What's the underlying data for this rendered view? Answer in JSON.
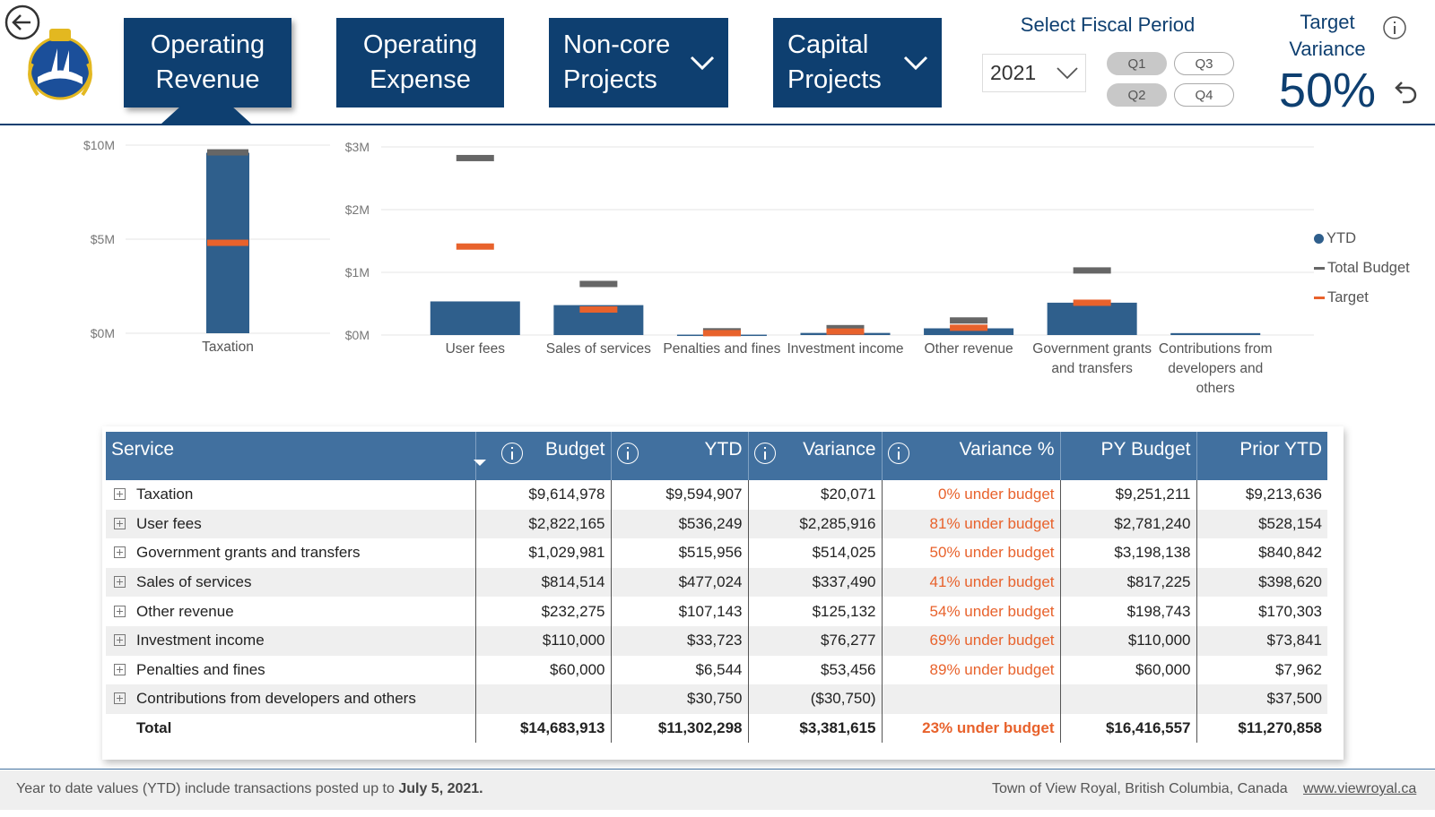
{
  "nav": {
    "buttons": [
      "Operating Revenue",
      "Operating Expense",
      "Non-core Projects",
      "Capital Projects"
    ],
    "fiscal_title": "Select Fiscal Period",
    "year": "2021",
    "quarters": [
      "Q1",
      "Q3",
      "Q2",
      "Q4"
    ],
    "target_title": "Target Variance",
    "target_value": "50%"
  },
  "chart_data": [
    {
      "type": "bar",
      "categories": [
        "Taxation"
      ],
      "series": [
        {
          "color": "#2f5f8c",
          "values": [
            9594907
          ]
        },
        {
          "color": "#666666",
          "values": [
            9614978
          ]
        },
        {
          "color": "#e8622c",
          "values": [
            4807489
          ]
        }
      ],
      "ylim": [
        0,
        10000000
      ],
      "yticks": [
        {
          "value": 0,
          "label": "$0M"
        },
        {
          "value": 5000000,
          "label": "$5M"
        },
        {
          "value": 10000000,
          "label": "$10M"
        }
      ],
      "grid": true
    },
    {
      "type": "bar",
      "categories": [
        "User fees",
        "Sales of services",
        "Penalties and fines",
        "Investment income",
        "Other revenue",
        "Government grants and transfers",
        "Contributions from developers and others"
      ],
      "series": [
        {
          "name": "YTD",
          "color": "#2f5f8c",
          "values": [
            536249,
            477024,
            6544,
            33723,
            107143,
            515956,
            30750
          ]
        },
        {
          "name": "Total Budget",
          "color": "#666666",
          "values": [
            2822165,
            814514,
            60000,
            110000,
            232275,
            1029981,
            null
          ]
        },
        {
          "name": "Target",
          "color": "#e8622c",
          "values": [
            1411083,
            407257,
            30000,
            55000,
            116138,
            514991,
            null
          ]
        }
      ],
      "ylim": [
        0,
        3000000
      ],
      "yticks": [
        {
          "value": 0,
          "label": "$0M"
        },
        {
          "value": 1000000,
          "label": "$1M"
        },
        {
          "value": 2000000,
          "label": "$2M"
        },
        {
          "value": 3000000,
          "label": "$3M"
        }
      ],
      "grid": true,
      "legend": "right"
    }
  ],
  "table": {
    "columns": [
      "Service",
      "Budget",
      "YTD",
      "Variance",
      "Variance %",
      "PY Budget",
      "Prior YTD"
    ],
    "rows": [
      [
        "Taxation",
        "$9,614,978",
        "$9,594,907",
        "$20,071",
        "0% under budget",
        "$9,251,211",
        "$9,213,636"
      ],
      [
        "User fees",
        "$2,822,165",
        "$536,249",
        "$2,285,916",
        "81% under budget",
        "$2,781,240",
        "$528,154"
      ],
      [
        "Government grants and transfers",
        "$1,029,981",
        "$515,956",
        "$514,025",
        "50% under budget",
        "$3,198,138",
        "$840,842"
      ],
      [
        "Sales of services",
        "$814,514",
        "$477,024",
        "$337,490",
        "41% under budget",
        "$817,225",
        "$398,620"
      ],
      [
        "Other revenue",
        "$232,275",
        "$107,143",
        "$125,132",
        "54% under budget",
        "$198,743",
        "$170,303"
      ],
      [
        "Investment income",
        "$110,000",
        "$33,723",
        "$76,277",
        "69% under budget",
        "$110,000",
        "$73,841"
      ],
      [
        "Penalties and fines",
        "$60,000",
        "$6,544",
        "$53,456",
        "89% under budget",
        "$60,000",
        "$7,962"
      ],
      [
        "Contributions from developers and others",
        null,
        "$30,750",
        "($30,750)",
        null,
        null,
        "$37,500"
      ]
    ],
    "total": [
      "Total",
      "$14,683,913",
      "$11,302,298",
      "$3,381,615",
      "23% under budget",
      "$16,416,557",
      "$11,270,858"
    ]
  },
  "footer": {
    "note": "Year to date values (YTD) include transactions posted up to",
    "date": "July 5, 2021.",
    "town": "Town of View Royal, British Columbia, Canada",
    "url": "www.viewroyal.ca"
  }
}
